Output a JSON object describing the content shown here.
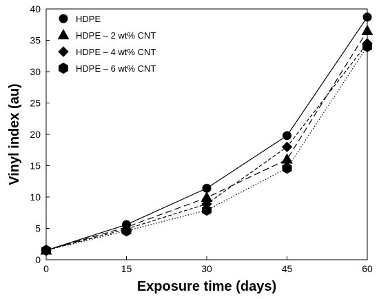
{
  "chart_data": {
    "type": "line",
    "title": "",
    "xlabel": "Exposure time (days)",
    "ylabel": "Vinyl index (au)",
    "x": [
      0,
      15,
      30,
      45,
      60
    ],
    "xticks": [
      0,
      15,
      30,
      45,
      60
    ],
    "yticks": [
      0,
      5,
      10,
      15,
      20,
      25,
      30,
      35,
      40
    ],
    "xlim": [
      0,
      60
    ],
    "ylim": [
      0,
      40
    ],
    "grid": false,
    "legend_position": "top-left",
    "series": [
      {
        "name": "HDPE",
        "marker": "circle",
        "line": "solid",
        "values": [
          1.5,
          5.6,
          11.4,
          19.8,
          38.7
        ]
      },
      {
        "name": "HDPE – 2 wt% CNT",
        "marker": "triangle",
        "line": "long-dash",
        "values": [
          1.5,
          5.2,
          9.9,
          16.0,
          36.5
        ]
      },
      {
        "name": "HDPE – 4 wt% CNT",
        "marker": "diamond",
        "line": "short-dash",
        "values": [
          1.5,
          4.9,
          8.9,
          18.0,
          34.5
        ]
      },
      {
        "name": "HDPE – 6 wt% CNT",
        "marker": "hexagon",
        "line": "dotted",
        "values": [
          1.5,
          4.6,
          7.9,
          14.6,
          34.0
        ]
      }
    ],
    "colors": {
      "marker": "#000000",
      "line": "#000000"
    }
  }
}
